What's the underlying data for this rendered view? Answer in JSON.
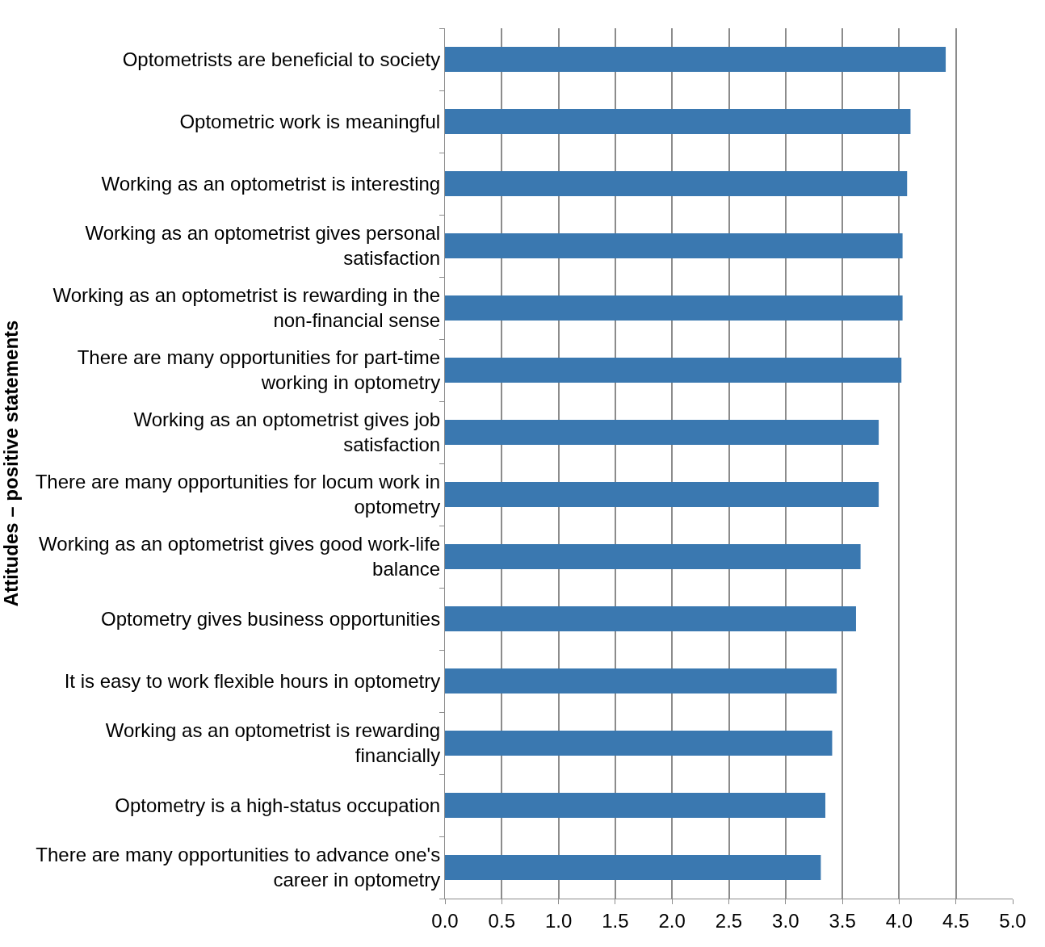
{
  "chart_data": {
    "type": "bar",
    "orientation": "horizontal",
    "ylabel": "Attitudes – positive statements",
    "categories": [
      "Optometrists are beneficial to society",
      "Optometric work is meaningful",
      "Working as an optometrist is interesting",
      "Working as an optometrist gives personal satisfaction",
      "Working as an optometrist is rewarding in the non-financial sense",
      "There are many opportunities for part-time working in optometry",
      "Working as an optometrist gives job satisfaction",
      "There are many opportunities for locum work in optometry",
      "Working as an optometrist gives good work-life balance",
      "Optometry gives business opportunities",
      "It is easy to work flexible hours in optometry",
      "Working as an optometrist is rewarding financially",
      "Optometry is a high-status occupation",
      "There are many opportunities to advance one's career in optometry"
    ],
    "values": [
      4.41,
      4.1,
      4.07,
      4.03,
      4.03,
      4.02,
      3.82,
      3.82,
      3.66,
      3.62,
      3.45,
      3.41,
      3.35,
      3.31
    ],
    "color": "#3a78b0",
    "xlim": [
      0,
      5
    ],
    "xticks": [
      {
        "value": 0,
        "label": "0.0"
      },
      {
        "value": 0.5,
        "label": "0.5"
      },
      {
        "value": 1,
        "label": "1.0"
      },
      {
        "value": 1.5,
        "label": "1.5"
      },
      {
        "value": 2,
        "label": "2.0"
      },
      {
        "value": 2.5,
        "label": "2.5"
      },
      {
        "value": 3,
        "label": "3.0"
      },
      {
        "value": 3.5,
        "label": "3.5"
      },
      {
        "value": 4,
        "label": "4.0"
      },
      {
        "value": 4.5,
        "label": "4.5"
      },
      {
        "value": 5,
        "label": "5.0"
      }
    ],
    "grid": "x"
  }
}
